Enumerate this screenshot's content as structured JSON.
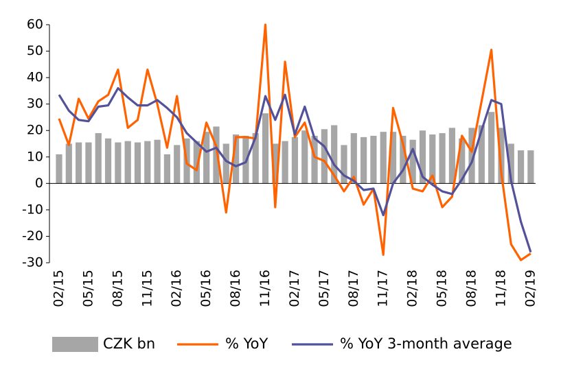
{
  "chart_data": {
    "type": "bar-line",
    "categories": [
      "02/15",
      null,
      null,
      "05/15",
      null,
      null,
      "08/15",
      null,
      null,
      "11/15",
      null,
      null,
      "02/16",
      null,
      null,
      "05/16",
      null,
      null,
      "08/16",
      null,
      null,
      "11/16",
      null,
      null,
      "02/17",
      null,
      null,
      "05/17",
      null,
      null,
      "08/17",
      null,
      null,
      "11/17",
      null,
      null,
      "02/18",
      null,
      null,
      "05/18",
      null,
      null,
      "08/18",
      null,
      null,
      "11/18",
      null,
      null,
      "02/19"
    ],
    "series": [
      {
        "name": "CZK bn",
        "type": "bar",
        "color": "#a6a6a6",
        "values": [
          11,
          15,
          15.5,
          15.5,
          19,
          17,
          15.5,
          16,
          15.5,
          16,
          16.5,
          11,
          14.5,
          17,
          16,
          19.5,
          21.5,
          15,
          18.5,
          18,
          19,
          26.5,
          15,
          16,
          17.5,
          20,
          18,
          20.5,
          22,
          14.5,
          19,
          17.5,
          18,
          19.5,
          19.5,
          18,
          16.5,
          20,
          18.5,
          19,
          21,
          17,
          21,
          22,
          27,
          21,
          15,
          12.5,
          12.5
        ]
      },
      {
        "name": "% YoY",
        "type": "line",
        "color": "#ff6200",
        "values": [
          24.5,
          14.5,
          32,
          24.5,
          31,
          33.5,
          43,
          21,
          24,
          43,
          30,
          13.5,
          33,
          7.5,
          5,
          23,
          14,
          -11,
          17.5,
          17.5,
          17,
          60,
          -9,
          46,
          17.5,
          23,
          10,
          8.5,
          3,
          -3,
          2.5,
          -8,
          -2,
          -27,
          28.5,
          15,
          -2,
          -3,
          3,
          -9,
          -5,
          18,
          12,
          31,
          50.5,
          4,
          -23,
          -29,
          -26.5
        ]
      },
      {
        "name": "% YoY 3-month average",
        "type": "line",
        "color": "#525199",
        "values": [
          33.5,
          27.5,
          24,
          23.5,
          29,
          29.5,
          36,
          32.5,
          29.5,
          29.5,
          31.5,
          28.5,
          25,
          19,
          15.5,
          12,
          13.5,
          8.5,
          6.5,
          8,
          17.5,
          33,
          24,
          33.5,
          18.5,
          29,
          17,
          14,
          7,
          3,
          1,
          -2.5,
          -2,
          -12,
          0,
          5,
          13,
          2.5,
          -0.5,
          -3,
          -4,
          1.5,
          8,
          20,
          31.5,
          30,
          1,
          -14.5,
          -26
        ]
      }
    ],
    "ylim": [
      -30,
      60
    ],
    "yticks": [
      -30,
      -20,
      -10,
      0,
      10,
      20,
      30,
      40,
      50,
      60
    ],
    "grid": false,
    "legend": "bottom"
  }
}
